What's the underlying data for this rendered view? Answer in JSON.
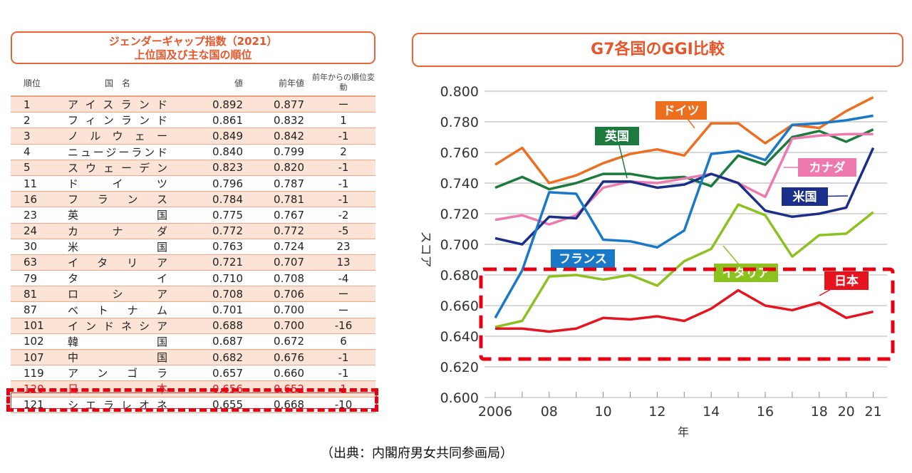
{
  "table": {
    "title_line1": "ジェンダーギャップ指数（2021）",
    "title_line2": "上位国及び主な国の順位",
    "headers": {
      "rank": "順位",
      "country": "国　名",
      "value": "値",
      "prev": "前年値",
      "change": "前年からの順位変動"
    },
    "rows": [
      {
        "rank": "1",
        "country": "アイスランド",
        "value": "0.892",
        "prev": "0.877",
        "change": "ー"
      },
      {
        "rank": "2",
        "country": "フィンランド",
        "value": "0.861",
        "prev": "0.832",
        "change": "1"
      },
      {
        "rank": "3",
        "country": "ノルウェー",
        "value": "0.849",
        "prev": "0.842",
        "change": "-1"
      },
      {
        "rank": "4",
        "country": "ニュージーランド",
        "value": "0.840",
        "prev": "0.799",
        "change": "2"
      },
      {
        "rank": "5",
        "country": "スウェーデン",
        "value": "0.823",
        "prev": "0.820",
        "change": "-1"
      },
      {
        "rank": "11",
        "country": "ドイツ",
        "value": "0.796",
        "prev": "0.787",
        "change": "-1"
      },
      {
        "rank": "16",
        "country": "フランス",
        "value": "0.784",
        "prev": "0.781",
        "change": "-1"
      },
      {
        "rank": "23",
        "country": "英国",
        "value": "0.775",
        "prev": "0.767",
        "change": "-2"
      },
      {
        "rank": "24",
        "country": "カナダ",
        "value": "0.772",
        "prev": "0.772",
        "change": "-5"
      },
      {
        "rank": "30",
        "country": "米国",
        "value": "0.763",
        "prev": "0.724",
        "change": "23"
      },
      {
        "rank": "63",
        "country": "イタリア",
        "value": "0.721",
        "prev": "0.707",
        "change": "13"
      },
      {
        "rank": "79",
        "country": "タイ",
        "value": "0.710",
        "prev": "0.708",
        "change": "-4"
      },
      {
        "rank": "81",
        "country": "ロシア",
        "value": "0.708",
        "prev": "0.706",
        "change": "ー"
      },
      {
        "rank": "87",
        "country": "ベトナム",
        "value": "0.701",
        "prev": "0.700",
        "change": "ー"
      },
      {
        "rank": "101",
        "country": "インドネシア",
        "value": "0.688",
        "prev": "0.700",
        "change": "-16"
      },
      {
        "rank": "102",
        "country": "韓国",
        "value": "0.687",
        "prev": "0.672",
        "change": "6"
      },
      {
        "rank": "107",
        "country": "中国",
        "value": "0.682",
        "prev": "0.676",
        "change": "-1"
      },
      {
        "rank": "119",
        "country": "アンゴラ",
        "value": "0.657",
        "prev": "0.660",
        "change": "-1"
      },
      {
        "rank": "120",
        "country": "日本",
        "value": "0.656",
        "prev": "0.652",
        "change": "1"
      },
      {
        "rank": "121",
        "country": "シエラレオネ",
        "value": "0.655",
        "prev": "0.668",
        "change": "-10"
      }
    ]
  },
  "chart_data": {
    "type": "line",
    "title": "G7各国のGGI比較",
    "xlabel": "年",
    "ylabel": "スコア",
    "x": [
      2006,
      2007,
      2008,
      2009,
      2010,
      2011,
      2012,
      2013,
      2014,
      2015,
      2016,
      2017,
      2018,
      2020,
      2021
    ],
    "x_tick_labels": [
      "2006",
      "",
      "08",
      "",
      "10",
      "",
      "12",
      "",
      "14",
      "",
      "16",
      "",
      "18",
      "20",
      "21"
    ],
    "ylim": [
      0.6,
      0.8
    ],
    "y_ticks": [
      "0.600",
      "0.620",
      "0.640",
      "0.660",
      "0.680",
      "0.700",
      "0.720",
      "0.740",
      "0.760",
      "0.780",
      "0.800"
    ],
    "grid": true,
    "series": [
      {
        "name": "ドイツ",
        "color": "#ee6e1f",
        "values": [
          0.752,
          0.763,
          0.74,
          0.745,
          0.753,
          0.759,
          0.762,
          0.758,
          0.779,
          0.779,
          0.766,
          0.778,
          0.776,
          0.787,
          0.796
        ]
      },
      {
        "name": "英国",
        "color": "#1c7a3c",
        "values": [
          0.737,
          0.744,
          0.736,
          0.74,
          0.746,
          0.746,
          0.743,
          0.744,
          0.738,
          0.758,
          0.752,
          0.77,
          0.774,
          0.767,
          0.775
        ]
      },
      {
        "name": "カナダ",
        "color": "#ee79ae",
        "values": [
          0.716,
          0.719,
          0.713,
          0.719,
          0.737,
          0.741,
          0.74,
          0.743,
          0.746,
          0.74,
          0.731,
          0.769,
          0.771,
          0.772,
          0.772
        ]
      },
      {
        "name": "米国",
        "color": "#1a2e8a",
        "values": [
          0.704,
          0.7,
          0.718,
          0.717,
          0.741,
          0.741,
          0.737,
          0.739,
          0.746,
          0.74,
          0.722,
          0.718,
          0.72,
          0.724,
          0.763
        ]
      },
      {
        "name": "フランス",
        "color": "#1a78c8",
        "values": [
          0.652,
          0.683,
          0.734,
          0.733,
          0.703,
          0.702,
          0.698,
          0.709,
          0.759,
          0.761,
          0.755,
          0.778,
          0.779,
          0.781,
          0.784
        ]
      },
      {
        "name": "イタリア",
        "color": "#8cc220",
        "values": [
          0.646,
          0.65,
          0.679,
          0.68,
          0.677,
          0.68,
          0.673,
          0.689,
          0.697,
          0.726,
          0.719,
          0.692,
          0.706,
          0.707,
          0.721
        ]
      },
      {
        "name": "日本",
        "color": "#e5141e",
        "values": [
          0.645,
          0.645,
          0.643,
          0.645,
          0.652,
          0.651,
          0.653,
          0.65,
          0.658,
          0.67,
          0.66,
          0.657,
          0.662,
          0.652,
          0.656
        ]
      }
    ]
  },
  "source": "（出典：内閣府男女共同参画局）"
}
